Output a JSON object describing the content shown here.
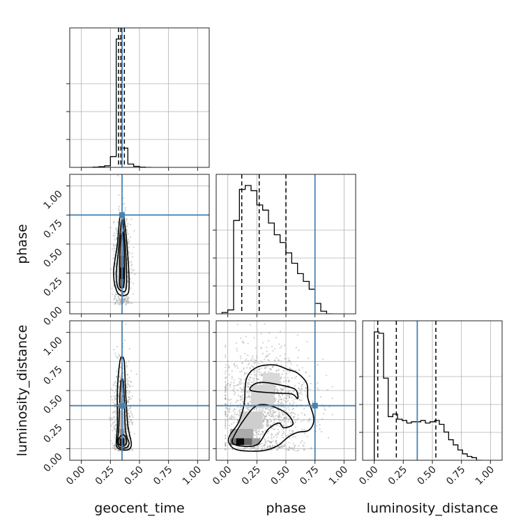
{
  "chart_data": {
    "type": "corner",
    "parameters": [
      "geocent_time",
      "phase",
      "luminosity_distance"
    ],
    "labels": {
      "geocent_time": "geocent_time",
      "phase": "phase",
      "luminosity_distance": "luminosity_distance"
    },
    "range": [
      -0.1,
      1.1
    ],
    "ticks": [
      "0.00",
      "0.25",
      "0.50",
      "0.75",
      "1.00"
    ],
    "tick_values": [
      0,
      0.25,
      0.5,
      0.75,
      1.0
    ],
    "grid": true,
    "truth_color": "#4682b4",
    "truths": {
      "geocent_time": 0.35,
      "phase": 0.75,
      "luminosity_distance": 0.37
    },
    "quantiles": {
      "geocent_time": [
        0.32,
        0.34,
        0.37
      ],
      "phase": [
        0.12,
        0.27,
        0.5
      ],
      "luminosity_distance": [
        0.03,
        0.19,
        0.53
      ]
    },
    "histograms": {
      "geocent_time": {
        "bin_edges": [
          0.0,
          0.05,
          0.1,
          0.15,
          0.2,
          0.25,
          0.3,
          0.35,
          0.4,
          0.45,
          0.5,
          0.55,
          0.6
        ],
        "counts": [
          0,
          0,
          0.2,
          0.5,
          1.2,
          8.4,
          100,
          15.0,
          2.6,
          0.8,
          0.2,
          0
        ]
      },
      "phase": {
        "bin_edges": [
          -0.05,
          0.0,
          0.05,
          0.1,
          0.15,
          0.2,
          0.25,
          0.3,
          0.35,
          0.4,
          0.45,
          0.5,
          0.55,
          0.6,
          0.65,
          0.7,
          0.75,
          0.8,
          0.85,
          0.9
        ],
        "counts": [
          1,
          3,
          72,
          96,
          99,
          95,
          84,
          80,
          70,
          61,
          55,
          47,
          39,
          31,
          25,
          19,
          8,
          2,
          0
        ]
      },
      "luminosity_distance": {
        "bin_edges": [
          0.0,
          0.04,
          0.08,
          0.12,
          0.16,
          0.2,
          0.24,
          0.28,
          0.32,
          0.36,
          0.4,
          0.44,
          0.48,
          0.52,
          0.56,
          0.6,
          0.64,
          0.68,
          0.72,
          0.76,
          0.8,
          0.84,
          0.88,
          0.92
        ],
        "counts": [
          100,
          99,
          64,
          34,
          36,
          32,
          31,
          29,
          30,
          30,
          31,
          29,
          30,
          31,
          28,
          22,
          16,
          12,
          8,
          5,
          3,
          2,
          0
        ]
      }
    },
    "pairs": [
      {
        "x": "geocent_time",
        "y": "phase",
        "scatter": {
          "center": [
            0.35,
            0.32
          ],
          "spread": [
            0.035,
            0.22
          ],
          "count": 700
        },
        "density_cells": [
          {
            "x": 0.33,
            "y": 0.2,
            "w": 0.04,
            "h": 0.1,
            "v": 0.9
          },
          {
            "x": 0.33,
            "y": 0.12,
            "w": 0.04,
            "h": 0.08,
            "v": 0.6
          },
          {
            "x": 0.33,
            "y": 0.3,
            "w": 0.04,
            "h": 0.1,
            "v": 0.55
          },
          {
            "x": 0.33,
            "y": 0.4,
            "w": 0.04,
            "h": 0.1,
            "v": 0.35
          },
          {
            "x": 0.33,
            "y": 0.5,
            "w": 0.04,
            "h": 0.1,
            "v": 0.2
          },
          {
            "x": 0.31,
            "y": 0.12,
            "w": 0.02,
            "h": 0.4,
            "v": 0.15
          },
          {
            "x": 0.37,
            "y": 0.12,
            "w": 0.02,
            "h": 0.4,
            "v": 0.15
          }
        ],
        "contours": [
          [
            [
              0.33,
              0.14
            ],
            [
              0.36,
              0.13
            ],
            [
              0.37,
              0.2
            ],
            [
              0.37,
              0.4
            ],
            [
              0.36,
              0.58
            ],
            [
              0.35,
              0.6
            ],
            [
              0.34,
              0.55
            ],
            [
              0.33,
              0.4
            ],
            [
              0.33,
              0.25
            ]
          ],
          [
            [
              0.31,
              0.14
            ],
            [
              0.34,
              0.1
            ],
            [
              0.38,
              0.1
            ],
            [
              0.39,
              0.2
            ],
            [
              0.38,
              0.45
            ],
            [
              0.36,
              0.68
            ],
            [
              0.35,
              0.71
            ],
            [
              0.34,
              0.66
            ],
            [
              0.32,
              0.45
            ],
            [
              0.3,
              0.25
            ]
          ],
          [
            [
              0.29,
              0.14
            ],
            [
              0.32,
              0.07
            ],
            [
              0.38,
              0.06
            ],
            [
              0.41,
              0.12
            ],
            [
              0.4,
              0.4
            ],
            [
              0.37,
              0.7
            ],
            [
              0.35,
              0.76
            ],
            [
              0.33,
              0.72
            ],
            [
              0.31,
              0.5
            ],
            [
              0.28,
              0.3
            ],
            [
              0.28,
              0.2
            ]
          ]
        ]
      },
      {
        "x": "geocent_time",
        "y": "luminosity_distance",
        "scatter": {
          "center": [
            0.35,
            0.3
          ],
          "spread": [
            0.04,
            0.24
          ],
          "count": 700
        },
        "density_cells": [
          {
            "x": 0.33,
            "y": 0.03,
            "w": 0.04,
            "h": 0.06,
            "v": 0.95
          },
          {
            "x": 0.31,
            "y": 0.03,
            "w": 0.02,
            "h": 0.06,
            "v": 0.5
          },
          {
            "x": 0.37,
            "y": 0.03,
            "w": 0.02,
            "h": 0.06,
            "v": 0.45
          },
          {
            "x": 0.33,
            "y": 0.09,
            "w": 0.04,
            "h": 0.08,
            "v": 0.4
          },
          {
            "x": 0.33,
            "y": 0.17,
            "w": 0.04,
            "h": 0.15,
            "v": 0.2
          }
        ],
        "contours": [
          [
            [
              0.32,
              0.04
            ],
            [
              0.36,
              0.02
            ],
            [
              0.39,
              0.05
            ],
            [
              0.38,
              0.1
            ],
            [
              0.36,
              0.12
            ],
            [
              0.34,
              0.11
            ],
            [
              0.32,
              0.08
            ]
          ],
          [
            [
              0.31,
              0.06
            ],
            [
              0.33,
              0.01
            ],
            [
              0.39,
              0.01
            ],
            [
              0.41,
              0.05
            ],
            [
              0.38,
              0.15
            ],
            [
              0.37,
              0.4
            ],
            [
              0.36,
              0.58
            ],
            [
              0.34,
              0.58
            ],
            [
              0.33,
              0.4
            ],
            [
              0.32,
              0.15
            ]
          ],
          [
            [
              0.3,
              0.05
            ],
            [
              0.32,
              0.0
            ],
            [
              0.4,
              -0.01
            ],
            [
              0.43,
              0.04
            ],
            [
              0.4,
              0.2
            ],
            [
              0.38,
              0.5
            ],
            [
              0.37,
              0.74
            ],
            [
              0.35,
              0.79
            ],
            [
              0.33,
              0.74
            ],
            [
              0.31,
              0.5
            ],
            [
              0.31,
              0.2
            ]
          ]
        ]
      },
      {
        "x": "phase",
        "y": "luminosity_distance",
        "scatter": {
          "center": [
            0.3,
            0.38
          ],
          "spread": [
            0.2,
            0.24
          ],
          "count": 1400
        },
        "density_cells": [
          {
            "x": 0.07,
            "y": 0.03,
            "w": 0.07,
            "h": 0.06,
            "v": 1.0
          },
          {
            "x": 0.02,
            "y": 0.03,
            "w": 0.05,
            "h": 0.06,
            "v": 0.55
          },
          {
            "x": 0.14,
            "y": 0.03,
            "w": 0.07,
            "h": 0.06,
            "v": 0.6
          },
          {
            "x": 0.21,
            "y": 0.03,
            "w": 0.07,
            "h": 0.06,
            "v": 0.35
          },
          {
            "x": 0.02,
            "y": 0.09,
            "w": 0.2,
            "h": 0.08,
            "v": 0.3
          },
          {
            "x": 0.1,
            "y": 0.17,
            "w": 0.2,
            "h": 0.15,
            "v": 0.15
          },
          {
            "x": 0.2,
            "y": 0.35,
            "w": 0.2,
            "h": 0.2,
            "v": 0.12
          },
          {
            "x": 0.3,
            "y": 0.55,
            "w": 0.15,
            "h": 0.1,
            "v": 0.1
          }
        ],
        "contours": [
          [
            [
              0.04,
              0.05
            ],
            [
              0.14,
              0.02
            ],
            [
              0.26,
              0.04
            ],
            [
              0.35,
              0.17
            ],
            [
              0.44,
              0.22
            ],
            [
              0.48,
              0.18
            ],
            [
              0.56,
              0.21
            ],
            [
              0.52,
              0.29
            ],
            [
              0.42,
              0.35
            ],
            [
              0.3,
              0.38
            ],
            [
              0.22,
              0.35
            ],
            [
              0.14,
              0.25
            ],
            [
              0.07,
              0.14
            ]
          ],
          [
            [
              0.2,
              0.5
            ],
            [
              0.38,
              0.48
            ],
            [
              0.55,
              0.47
            ],
            [
              0.6,
              0.43
            ],
            [
              0.58,
              0.51
            ],
            [
              0.44,
              0.55
            ],
            [
              0.3,
              0.57
            ],
            [
              0.22,
              0.55
            ]
          ],
          [
            [
              0.01,
              0.05
            ],
            [
              0.08,
              -0.01
            ],
            [
              0.28,
              -0.02
            ],
            [
              0.42,
              0.02
            ],
            [
              0.52,
              0.1
            ],
            [
              0.6,
              0.14
            ],
            [
              0.7,
              0.16
            ],
            [
              0.74,
              0.26
            ],
            [
              0.69,
              0.43
            ],
            [
              0.68,
              0.56
            ],
            [
              0.6,
              0.65
            ],
            [
              0.52,
              0.68
            ],
            [
              0.4,
              0.72
            ],
            [
              0.25,
              0.7
            ],
            [
              0.16,
              0.6
            ],
            [
              0.14,
              0.38
            ],
            [
              0.09,
              0.22
            ],
            [
              0.02,
              0.12
            ]
          ]
        ]
      }
    ]
  }
}
